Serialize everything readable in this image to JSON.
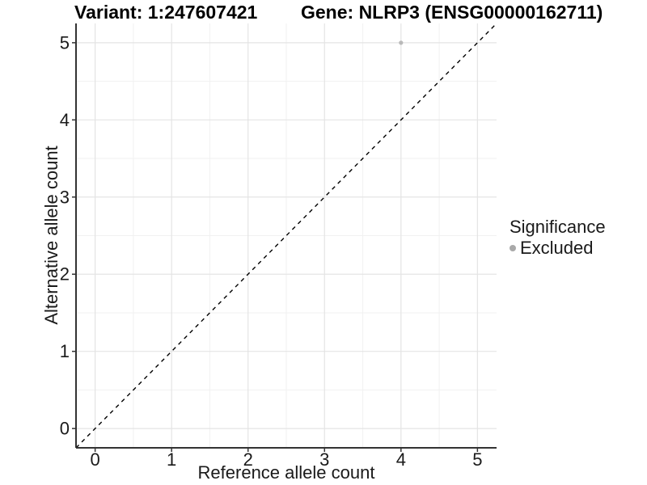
{
  "chart_data": {
    "type": "scatter",
    "titles": {
      "left": "Variant: 1:247607421",
      "right": "Gene: NLRP3 (ENSG00000162711)"
    },
    "xlabel": "Reference allele count",
    "ylabel": "Alternative allele count",
    "xlim": [
      -0.25,
      5.25
    ],
    "ylim": [
      -0.25,
      5.25
    ],
    "x_ticks": [
      0,
      1,
      2,
      3,
      4,
      5
    ],
    "y_ticks": [
      0,
      1,
      2,
      3,
      4,
      5
    ],
    "grid": {
      "major": true,
      "minor": true
    },
    "series": [
      {
        "name": "Excluded",
        "color": "#b9b9b9",
        "points": [
          {
            "x": 4,
            "y": 5
          }
        ]
      }
    ],
    "reference_line": {
      "slope": 1,
      "intercept": 0,
      "style": "dashed",
      "color": "#000000"
    },
    "legend": {
      "title": "Significance",
      "position": "right",
      "items": [
        {
          "label": "Excluded",
          "color": "#a9a9a9"
        }
      ]
    },
    "colors": {
      "background": "#ffffff",
      "grid_major": "#e4e4e4",
      "grid_minor": "#f1f1f1",
      "axis_line": "#333333",
      "tick_text": "#1a1a1a"
    }
  }
}
